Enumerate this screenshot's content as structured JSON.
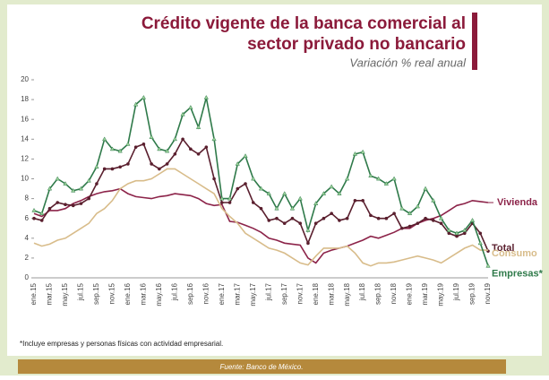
{
  "chart_data": {
    "type": "line",
    "title": [
      "Crédito vigente de la banca comercial al",
      "sector privado no bancario"
    ],
    "subtitle": "Variación % real anual",
    "footnote": "*Incluye empresas y personas físicas con actividad empresarial.",
    "source": "Fuente: Banco de México.",
    "categories": [
      "ene.15",
      null,
      "mar.15",
      null,
      "may.15",
      null,
      "jul.15",
      null,
      "sep.15",
      null,
      "nov.15",
      null,
      "ene.16",
      null,
      "mar.16",
      null,
      "may.16",
      null,
      "jul.16",
      null,
      "sep.16",
      null,
      "nov.16",
      null,
      "ene.17",
      null,
      "mar.17",
      null,
      "may.17",
      null,
      "jul.17",
      null,
      "sep.17",
      null,
      "nov.17",
      null,
      "ene.18",
      null,
      "mar.18",
      null,
      "may.18",
      null,
      "jul.18",
      null,
      "sep.18",
      null,
      "nov.18",
      null,
      "ene.19",
      null,
      "mar.19",
      null,
      "may.19",
      null,
      "jul.19",
      null,
      "sep.19",
      null,
      "nov.19"
    ],
    "ylim": [
      0,
      20
    ],
    "yticks": [
      0,
      2,
      4,
      6,
      8,
      10,
      12,
      14,
      16,
      18,
      20
    ],
    "grid": false,
    "series": [
      {
        "name": "Vivienda",
        "color": "#8c2349",
        "marker": "none",
        "values": [
          6.5,
          6.2,
          6.8,
          6.8,
          7.0,
          7.5,
          7.8,
          8.2,
          8.5,
          8.7,
          8.8,
          9.0,
          8.5,
          8.2,
          8.1,
          8.0,
          8.2,
          8.3,
          8.5,
          8.4,
          8.3,
          8.0,
          7.5,
          7.3,
          7.4,
          5.7,
          5.6,
          5.3,
          5.0,
          4.6,
          4.0,
          3.8,
          3.5,
          3.4,
          3.3,
          2.0,
          1.5,
          2.5,
          2.8,
          3.0,
          3.2,
          3.5,
          3.8,
          4.2,
          4.0,
          4.3,
          4.6,
          5.0,
          5.0,
          5.5,
          5.8,
          6.0,
          6.3,
          6.8,
          7.3,
          7.5,
          7.8,
          7.7,
          7.6
        ]
      },
      {
        "name": "Total",
        "color": "#5a1f2e",
        "marker": "circle",
        "values": [
          6.0,
          5.8,
          7.0,
          7.6,
          7.4,
          7.3,
          7.5,
          8.0,
          9.5,
          11.0,
          11.0,
          11.2,
          11.5,
          13.2,
          13.5,
          11.5,
          11.0,
          11.5,
          12.5,
          14.0,
          13.0,
          12.5,
          13.2,
          10.0,
          7.6,
          7.6,
          9.0,
          9.5,
          7.6,
          7.0,
          5.8,
          6.0,
          5.5,
          6.0,
          5.5,
          3.5,
          5.5,
          6.0,
          6.5,
          5.8,
          6.0,
          7.8,
          7.8,
          6.3,
          6.0,
          6.0,
          6.5,
          5.0,
          5.2,
          5.5,
          6.0,
          5.8,
          5.5,
          4.5,
          4.2,
          4.5,
          5.5,
          4.5,
          2.7
        ]
      },
      {
        "name": "Consumo",
        "color": "#d8bc8a",
        "marker": "none",
        "values": [
          3.5,
          3.2,
          3.4,
          3.8,
          4.0,
          4.5,
          5.0,
          5.5,
          6.5,
          7.0,
          7.8,
          9.0,
          9.5,
          9.8,
          9.8,
          10.0,
          10.5,
          11.0,
          11.0,
          10.5,
          10.0,
          9.5,
          9.0,
          8.5,
          7.0,
          6.2,
          5.5,
          4.5,
          4.0,
          3.5,
          3.0,
          2.8,
          2.5,
          2.0,
          1.5,
          1.3,
          2.2,
          3.0,
          3.0,
          3.0,
          3.2,
          2.5,
          1.5,
          1.2,
          1.5,
          1.5,
          1.6,
          1.8,
          2.0,
          2.2,
          2.0,
          1.8,
          1.5,
          2.0,
          2.5,
          3.0,
          3.3,
          2.8,
          2.8
        ]
      },
      {
        "name": "Empresas*",
        "color": "#2f7a4a",
        "marker": "triangle",
        "values": [
          6.8,
          6.5,
          9.0,
          10.0,
          9.5,
          8.8,
          9.0,
          9.8,
          11.2,
          14.0,
          13.0,
          12.8,
          13.5,
          17.5,
          18.2,
          14.2,
          13.0,
          12.8,
          14.0,
          16.5,
          17.2,
          15.2,
          18.2,
          14.0,
          8.0,
          8.0,
          11.5,
          12.3,
          10.0,
          9.0,
          8.5,
          7.0,
          8.5,
          7.0,
          8.0,
          4.8,
          7.5,
          8.5,
          9.2,
          8.5,
          10.0,
          12.5,
          12.7,
          10.3,
          10.0,
          9.5,
          10.0,
          7.0,
          6.5,
          7.2,
          9.0,
          7.8,
          6.0,
          4.8,
          4.5,
          4.8,
          5.8,
          3.5,
          1.2
        ]
      }
    ]
  }
}
